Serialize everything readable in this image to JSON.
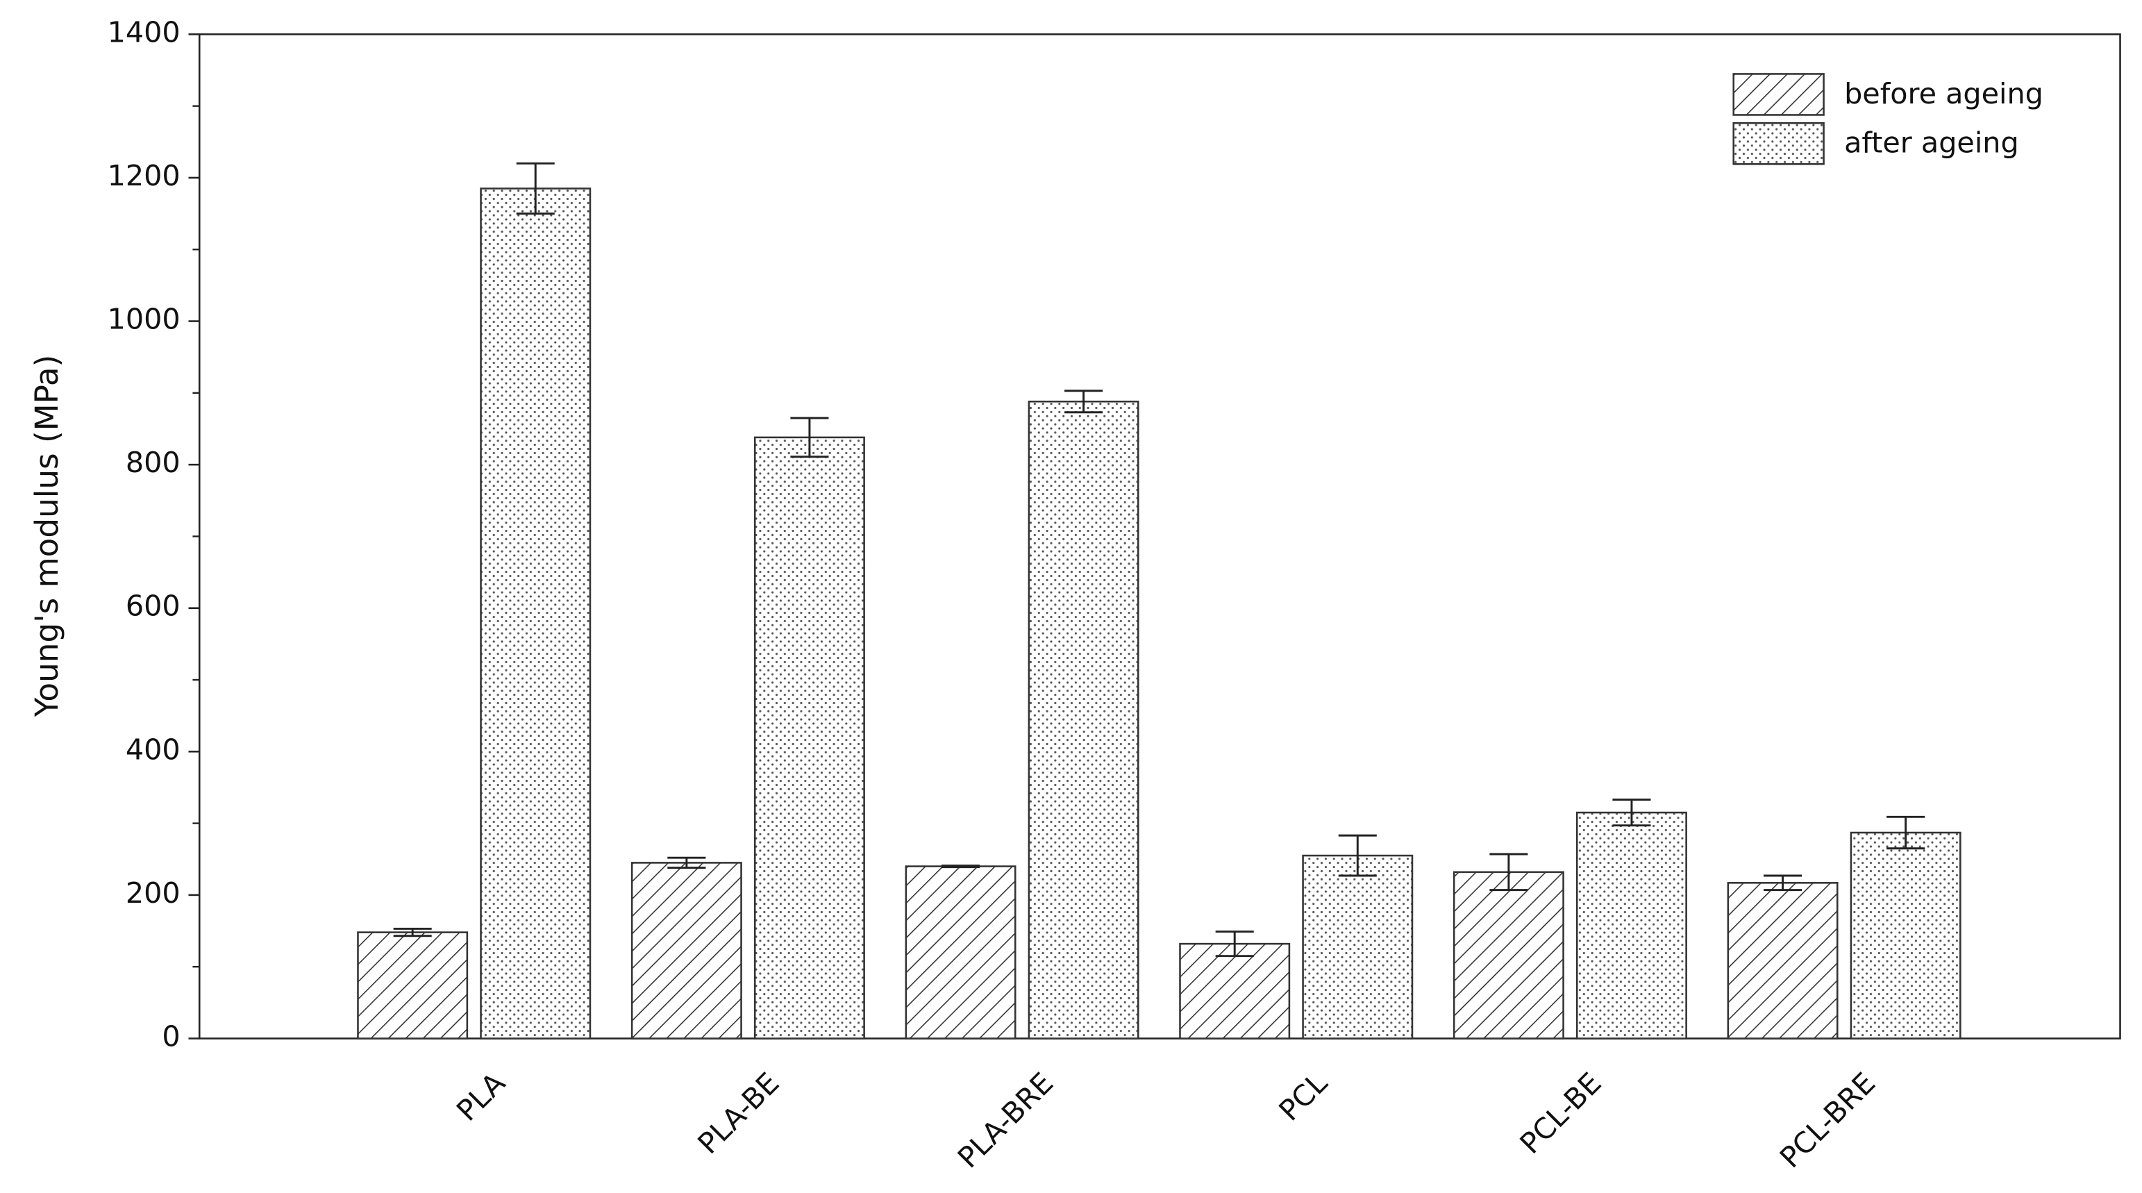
{
  "chart_data": {
    "type": "bar",
    "ylabel": "Young's modulus (MPa)",
    "categories": [
      "PLA",
      "PLA-BE",
      "PLA-BRE",
      "PCL",
      "PCL-BE",
      "PCL-BRE"
    ],
    "series": [
      {
        "name": "before ageing",
        "color": "#333333",
        "pattern": "hatch",
        "values": [
          148,
          245,
          240,
          132,
          232,
          217
        ],
        "errors": [
          5,
          7,
          1,
          17,
          25,
          10
        ]
      },
      {
        "name": "after ageing",
        "color": "#333333",
        "pattern": "dots",
        "values": [
          1185,
          838,
          888,
          255,
          315,
          287
        ],
        "errors": [
          35,
          27,
          15,
          28,
          18,
          22
        ]
      }
    ],
    "ylim": [
      0,
      1400
    ],
    "yticks": [
      0,
      200,
      400,
      600,
      800,
      1000,
      1200,
      1400
    ],
    "yminorticks": [
      100,
      300,
      500,
      700,
      900,
      1100,
      1300
    ],
    "legend": "upper right"
  }
}
